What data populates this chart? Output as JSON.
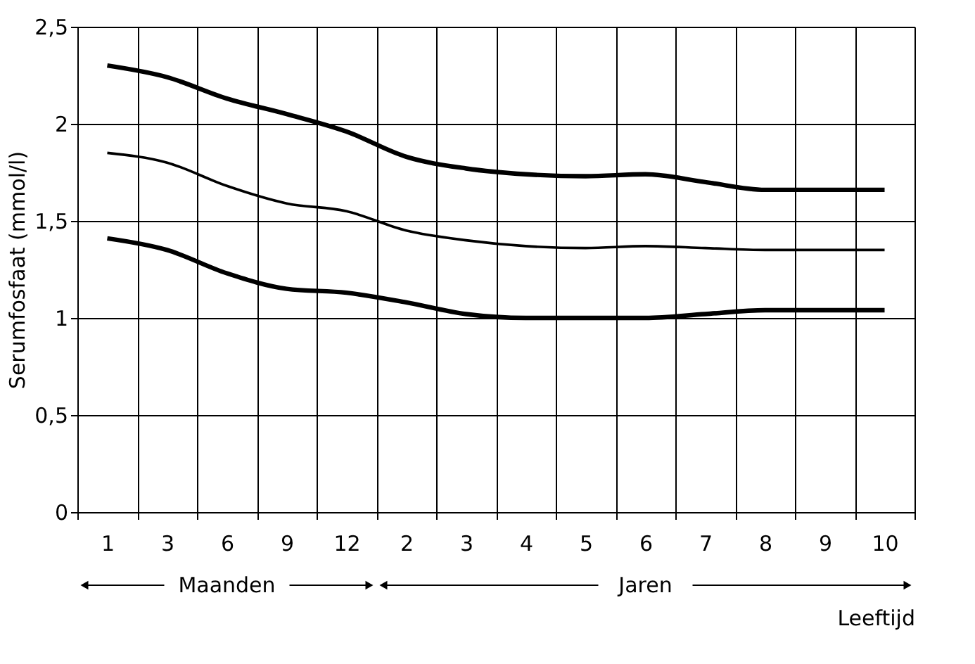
{
  "chart_data": {
    "type": "line",
    "ylabel": "Serumfosfaat (mmol/l)",
    "xlabel": "Leeftijd",
    "categories": [
      "1",
      "3",
      "6",
      "9",
      "12",
      "2",
      "3",
      "4",
      "5",
      "6",
      "7",
      "8",
      "9",
      "10"
    ],
    "series": [
      {
        "color": "#000000",
        "values": [
          2.3,
          2.24,
          2.13,
          2.05,
          1.96,
          1.83,
          1.77,
          1.74,
          1.73,
          1.74,
          1.7,
          1.66,
          1.66,
          1.66
        ]
      },
      {
        "color": "#000000",
        "values": [
          1.85,
          1.8,
          1.68,
          1.59,
          1.55,
          1.45,
          1.4,
          1.37,
          1.36,
          1.37,
          1.36,
          1.35,
          1.35,
          1.35
        ]
      },
      {
        "color": "#000000",
        "values": [
          1.41,
          1.35,
          1.23,
          1.15,
          1.13,
          1.08,
          1.02,
          1.0,
          1.0,
          1.0,
          1.02,
          1.04,
          1.04,
          1.04
        ]
      }
    ],
    "ylim": [
      0,
      2.5
    ],
    "yticks": [
      0,
      {
        "value": 0.5,
        "label": "0,5"
      },
      1,
      {
        "value": 1.5,
        "label": "1,5"
      },
      2,
      {
        "value": 2.5,
        "label": "2,5"
      }
    ],
    "annotations": [
      "Maanden",
      "Jaren"
    ],
    "grid": true,
    "marker": "none",
    "line_style": "solid"
  }
}
